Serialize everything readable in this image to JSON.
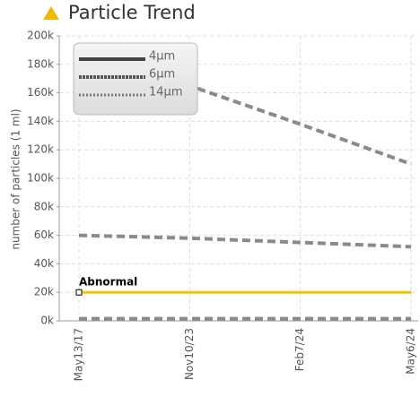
{
  "chart_data": {
    "type": "line",
    "title": "Particle Trend",
    "y_label": "number of particles (1 ml)",
    "categories": [
      "May13/17",
      "Nov10/23",
      "Feb7/24",
      "May6/24"
    ],
    "series": [
      {
        "name": "4μm",
        "color": "#8a8a8a",
        "values": [
          192000,
          165000,
          138000,
          110000
        ]
      },
      {
        "name": "6μm",
        "color": "#8a8a8a",
        "values": [
          60000,
          58000,
          55000,
          52000
        ]
      },
      {
        "name": "14μm",
        "color": "#8a8a8a",
        "values": [
          1500,
          1500,
          1500,
          1500
        ]
      }
    ],
    "threshold": {
      "label": "Abnormal",
      "value": 20000,
      "color": "#f5c400"
    },
    "ylim": [
      0,
      200000
    ],
    "yticks": [
      {
        "value": 0,
        "label": "0k"
      },
      {
        "value": 20000,
        "label": "20k"
      },
      {
        "value": 40000,
        "label": "40k"
      },
      {
        "value": 60000,
        "label": "60k"
      },
      {
        "value": 80000,
        "label": "80k"
      },
      {
        "value": 100000,
        "label": "100k"
      },
      {
        "value": 120000,
        "label": "120k"
      },
      {
        "value": 140000,
        "label": "140k"
      },
      {
        "value": 160000,
        "label": "160k"
      },
      {
        "value": 180000,
        "label": "180k"
      },
      {
        "value": 200000,
        "label": "200k"
      }
    ],
    "grid": true,
    "legend": "top-left"
  }
}
